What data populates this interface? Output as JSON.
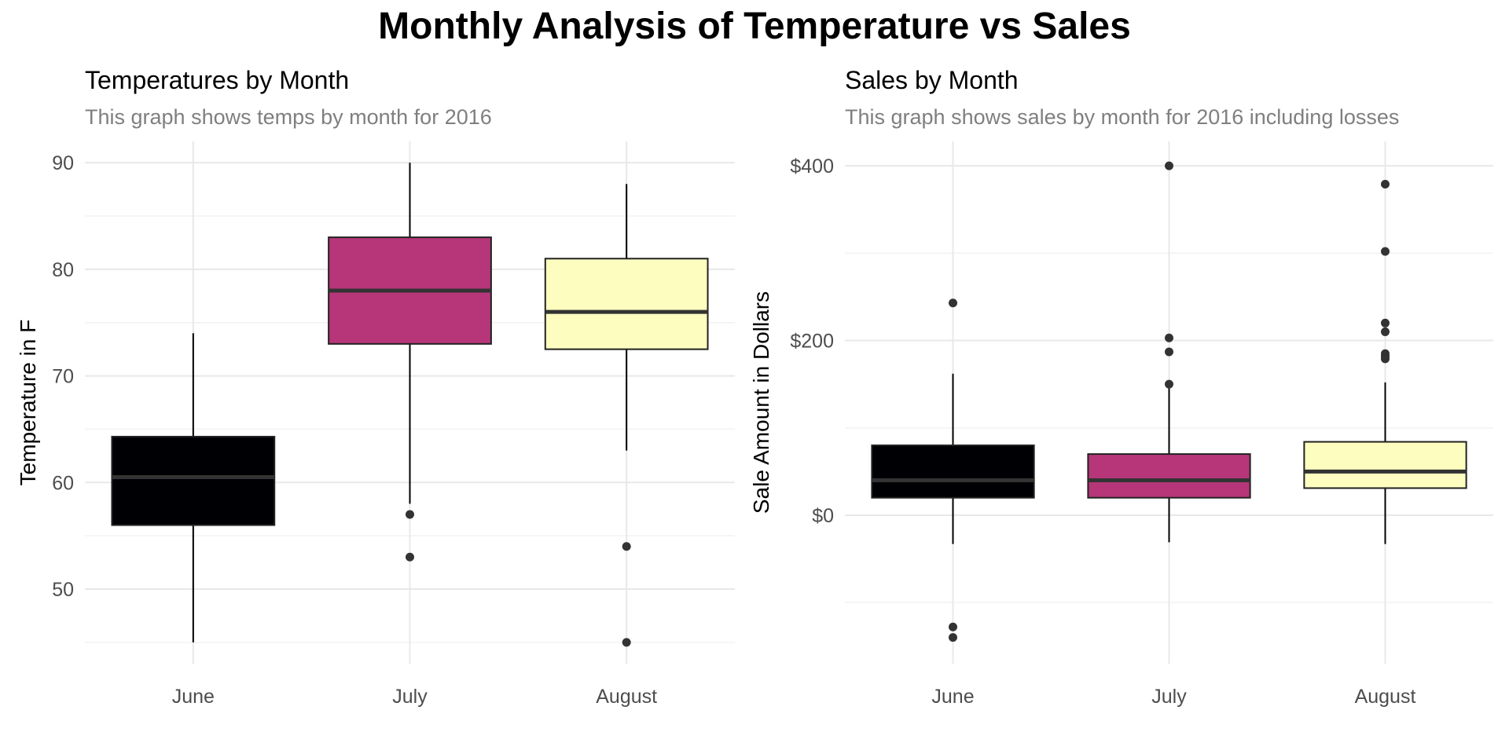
{
  "main_title": "Monthly Analysis of Temperature vs Sales",
  "chart_data": [
    {
      "type": "boxplot",
      "title": "Temperatures by Month",
      "subtitle": "This graph shows temps by month for 2016",
      "xlabel": "",
      "ylabel": "Temperature in F",
      "categories": [
        "June",
        "July",
        "August"
      ],
      "ylim": [
        43,
        92
      ],
      "y_ticks": [
        50,
        60,
        70,
        80,
        90
      ],
      "y_tick_labels": [
        "50",
        "60",
        "70",
        "80",
        "90"
      ],
      "boxes": [
        {
          "category": "June",
          "whisker_low": 45,
          "q1": 56,
          "median": 60.5,
          "q3": 64.3,
          "whisker_high": 74,
          "outliers": [],
          "fill": "#000004"
        },
        {
          "category": "July",
          "whisker_low": 58,
          "q1": 73,
          "median": 78,
          "q3": 83,
          "whisker_high": 90,
          "outliers": [
            57,
            53
          ],
          "fill": "#B63679"
        },
        {
          "category": "August",
          "whisker_low": 63,
          "q1": 72.5,
          "median": 76,
          "q3": 81,
          "whisker_high": 88,
          "outliers": [
            54,
            45
          ],
          "fill": "#FCFDBF"
        }
      ],
      "grid": true
    },
    {
      "type": "boxplot",
      "title": "Sales by Month",
      "subtitle": "This graph shows sales by month for 2016 including losses",
      "xlabel": "",
      "ylabel": "Sale Amount in Dollars",
      "categories": [
        "June",
        "July",
        "August"
      ],
      "ylim": [
        -170,
        428
      ],
      "y_ticks": [
        0,
        200,
        400
      ],
      "y_tick_labels": [
        "$0",
        "$200",
        "$400"
      ],
      "boxes": [
        {
          "category": "June",
          "whisker_low": -33,
          "q1": 20,
          "median": 40,
          "q3": 80,
          "whisker_high": 162,
          "outliers": [
            243,
            -128,
            -140
          ],
          "fill": "#000004"
        },
        {
          "category": "July",
          "whisker_low": -31,
          "q1": 20,
          "median": 40,
          "q3": 70,
          "whisker_high": 152,
          "outliers": [
            400,
            203,
            187,
            150
          ],
          "fill": "#B63679"
        },
        {
          "category": "August",
          "whisker_low": -33,
          "q1": 31,
          "median": 50,
          "q3": 84,
          "whisker_high": 152,
          "outliers": [
            379,
            302,
            220,
            210,
            185,
            182,
            179
          ],
          "fill": "#FCFDBF"
        }
      ],
      "grid": true
    }
  ]
}
